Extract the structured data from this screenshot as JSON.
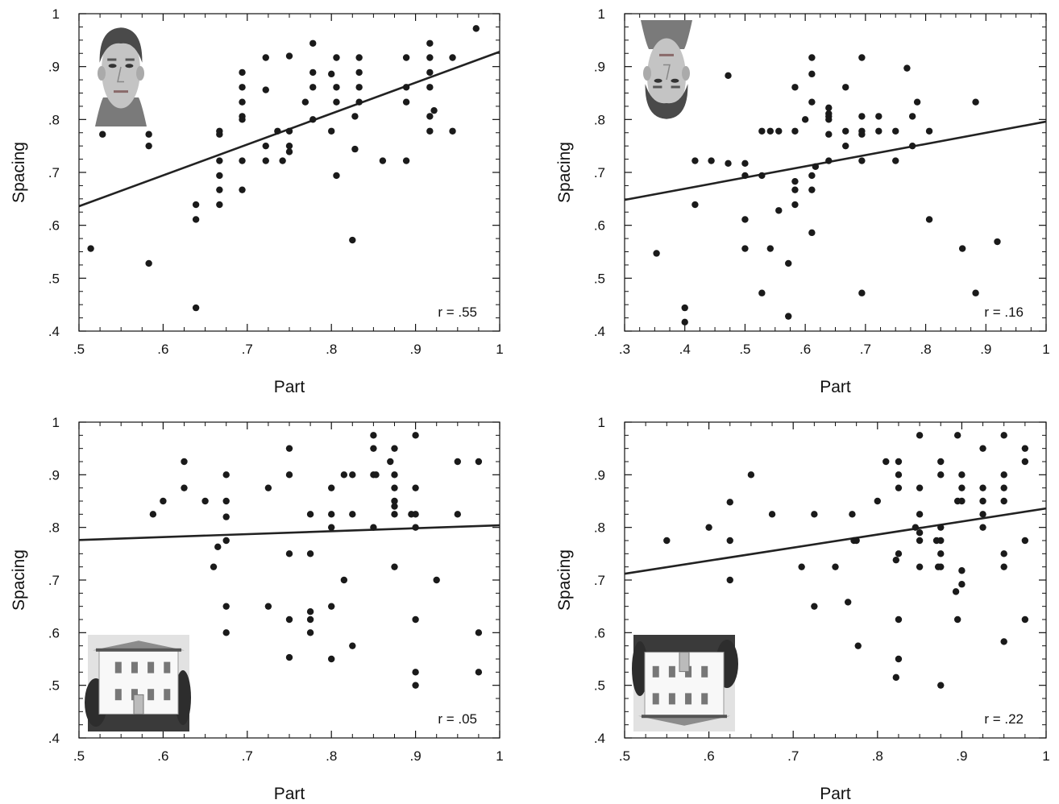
{
  "chart_data": [
    {
      "type": "scatter",
      "panel": "upright-face",
      "xlabel": "Part",
      "ylabel": "Spacing",
      "xlim": [
        0.5,
        1
      ],
      "ylim": [
        0.4,
        1
      ],
      "x_ticks": [
        ".5",
        ".6",
        ".7",
        ".8",
        ".9",
        "1"
      ],
      "y_ticks": [
        ".4",
        ".5",
        ".6",
        ".7",
        ".8",
        ".9",
        "1"
      ],
      "annotation": "r = .55",
      "image": "upright-face",
      "image_position": "top-left",
      "fit_line": {
        "x": [
          0.5,
          1.0
        ],
        "y": [
          0.636,
          0.928
        ]
      },
      "points": [
        [
          0.514,
          0.556
        ],
        [
          0.528,
          0.772
        ],
        [
          0.583,
          0.772
        ],
        [
          0.583,
          0.75
        ],
        [
          0.583,
          0.528
        ],
        [
          0.639,
          0.639
        ],
        [
          0.639,
          0.611
        ],
        [
          0.639,
          0.444
        ],
        [
          0.667,
          0.778
        ],
        [
          0.667,
          0.772
        ],
        [
          0.667,
          0.722
        ],
        [
          0.667,
          0.694
        ],
        [
          0.667,
          0.667
        ],
        [
          0.667,
          0.639
        ],
        [
          0.694,
          0.889
        ],
        [
          0.694,
          0.861
        ],
        [
          0.694,
          0.833
        ],
        [
          0.694,
          0.806
        ],
        [
          0.694,
          0.8
        ],
        [
          0.694,
          0.722
        ],
        [
          0.694,
          0.667
        ],
        [
          0.722,
          0.917
        ],
        [
          0.722,
          0.856
        ],
        [
          0.722,
          0.75
        ],
        [
          0.722,
          0.722
        ],
        [
          0.736,
          0.778
        ],
        [
          0.742,
          0.722
        ],
        [
          0.75,
          0.92
        ],
        [
          0.75,
          0.778
        ],
        [
          0.75,
          0.75
        ],
        [
          0.75,
          0.739
        ],
        [
          0.769,
          0.833
        ],
        [
          0.778,
          0.944
        ],
        [
          0.778,
          0.889
        ],
        [
          0.778,
          0.861
        ],
        [
          0.778,
          0.8
        ],
        [
          0.8,
          0.886
        ],
        [
          0.8,
          0.778
        ],
        [
          0.806,
          0.917
        ],
        [
          0.806,
          0.861
        ],
        [
          0.806,
          0.833
        ],
        [
          0.806,
          0.694
        ],
        [
          0.825,
          0.572
        ],
        [
          0.828,
          0.806
        ],
        [
          0.828,
          0.744
        ],
        [
          0.833,
          0.917
        ],
        [
          0.833,
          0.889
        ],
        [
          0.833,
          0.861
        ],
        [
          0.833,
          0.833
        ],
        [
          0.861,
          0.722
        ],
        [
          0.889,
          0.917
        ],
        [
          0.889,
          0.861
        ],
        [
          0.889,
          0.833
        ],
        [
          0.889,
          0.722
        ],
        [
          0.917,
          0.944
        ],
        [
          0.917,
          0.917
        ],
        [
          0.917,
          0.889
        ],
        [
          0.917,
          0.861
        ],
        [
          0.917,
          0.806
        ],
        [
          0.917,
          0.778
        ],
        [
          0.922,
          0.817
        ],
        [
          0.944,
          0.917
        ],
        [
          0.944,
          0.778
        ],
        [
          0.972,
          0.972
        ]
      ]
    },
    {
      "type": "scatter",
      "panel": "inverted-face",
      "xlabel": "Part",
      "ylabel": "Spacing",
      "xlim": [
        0.3,
        1
      ],
      "ylim": [
        0.4,
        1
      ],
      "x_ticks": [
        ".3",
        ".4",
        ".5",
        ".6",
        ".7",
        ".8",
        ".9",
        "1"
      ],
      "y_ticks": [
        ".4",
        ".5",
        ".6",
        ".7",
        ".8",
        ".9",
        "1"
      ],
      "annotation": "r = .16",
      "image": "inverted-face",
      "image_position": "top-left",
      "fit_line": {
        "x": [
          0.3,
          1.0
        ],
        "y": [
          0.648,
          0.796
        ]
      },
      "points": [
        [
          0.353,
          0.547
        ],
        [
          0.4,
          0.444
        ],
        [
          0.4,
          0.417
        ],
        [
          0.417,
          0.722
        ],
        [
          0.417,
          0.639
        ],
        [
          0.444,
          0.722
        ],
        [
          0.472,
          0.883
        ],
        [
          0.472,
          0.717
        ],
        [
          0.5,
          0.717
        ],
        [
          0.5,
          0.694
        ],
        [
          0.5,
          0.611
        ],
        [
          0.5,
          0.556
        ],
        [
          0.528,
          0.778
        ],
        [
          0.528,
          0.694
        ],
        [
          0.528,
          0.472
        ],
        [
          0.542,
          0.778
        ],
        [
          0.542,
          0.556
        ],
        [
          0.556,
          0.778
        ],
        [
          0.556,
          0.628
        ],
        [
          0.572,
          0.528
        ],
        [
          0.572,
          0.428
        ],
        [
          0.583,
          0.861
        ],
        [
          0.583,
          0.778
        ],
        [
          0.583,
          0.683
        ],
        [
          0.583,
          0.667
        ],
        [
          0.583,
          0.639
        ],
        [
          0.6,
          0.8
        ],
        [
          0.611,
          0.917
        ],
        [
          0.611,
          0.886
        ],
        [
          0.611,
          0.833
        ],
        [
          0.611,
          0.694
        ],
        [
          0.611,
          0.667
        ],
        [
          0.611,
          0.586
        ],
        [
          0.617,
          0.711
        ],
        [
          0.639,
          0.822
        ],
        [
          0.639,
          0.811
        ],
        [
          0.639,
          0.806
        ],
        [
          0.639,
          0.8
        ],
        [
          0.639,
          0.772
        ],
        [
          0.639,
          0.722
        ],
        [
          0.667,
          0.861
        ],
        [
          0.667,
          0.778
        ],
        [
          0.667,
          0.75
        ],
        [
          0.694,
          0.917
        ],
        [
          0.694,
          0.806
        ],
        [
          0.694,
          0.778
        ],
        [
          0.694,
          0.772
        ],
        [
          0.694,
          0.722
        ],
        [
          0.694,
          0.472
        ],
        [
          0.722,
          0.806
        ],
        [
          0.722,
          0.778
        ],
        [
          0.75,
          0.778
        ],
        [
          0.75,
          0.722
        ],
        [
          0.769,
          0.897
        ],
        [
          0.778,
          0.806
        ],
        [
          0.778,
          0.75
        ],
        [
          0.786,
          0.833
        ],
        [
          0.806,
          0.778
        ],
        [
          0.806,
          0.611
        ],
        [
          0.861,
          0.556
        ],
        [
          0.883,
          0.833
        ],
        [
          0.883,
          0.472
        ],
        [
          0.919,
          0.569
        ]
      ]
    },
    {
      "type": "scatter",
      "panel": "upright-house",
      "xlabel": "Part",
      "ylabel": "Spacing",
      "xlim": [
        0.5,
        1
      ],
      "ylim": [
        0.4,
        1
      ],
      "x_ticks": [
        ".5",
        ".6",
        ".7",
        ".8",
        ".9",
        "1"
      ],
      "y_ticks": [
        ".4",
        ".5",
        ".6",
        ".7",
        ".8",
        ".9",
        "1"
      ],
      "annotation": "r = .05",
      "image": "upright-house",
      "image_position": "bottom-left",
      "fit_line": {
        "x": [
          0.5,
          1.0
        ],
        "y": [
          0.776,
          0.804
        ]
      },
      "points": [
        [
          0.588,
          0.825
        ],
        [
          0.6,
          0.85
        ],
        [
          0.625,
          0.925
        ],
        [
          0.625,
          0.875
        ],
        [
          0.65,
          0.85
        ],
        [
          0.66,
          0.725
        ],
        [
          0.665,
          0.763
        ],
        [
          0.675,
          0.9
        ],
        [
          0.675,
          0.85
        ],
        [
          0.675,
          0.82
        ],
        [
          0.675,
          0.775
        ],
        [
          0.675,
          0.65
        ],
        [
          0.675,
          0.6
        ],
        [
          0.725,
          0.875
        ],
        [
          0.725,
          0.65
        ],
        [
          0.75,
          0.95
        ],
        [
          0.75,
          0.9
        ],
        [
          0.75,
          0.75
        ],
        [
          0.75,
          0.625
        ],
        [
          0.75,
          0.553
        ],
        [
          0.775,
          0.825
        ],
        [
          0.775,
          0.75
        ],
        [
          0.775,
          0.64
        ],
        [
          0.775,
          0.625
        ],
        [
          0.775,
          0.6
        ],
        [
          0.8,
          0.875
        ],
        [
          0.8,
          0.825
        ],
        [
          0.8,
          0.8
        ],
        [
          0.8,
          0.65
        ],
        [
          0.8,
          0.55
        ],
        [
          0.815,
          0.9
        ],
        [
          0.815,
          0.7
        ],
        [
          0.825,
          0.9
        ],
        [
          0.825,
          0.825
        ],
        [
          0.825,
          0.575
        ],
        [
          0.85,
          0.975
        ],
        [
          0.85,
          0.95
        ],
        [
          0.85,
          0.9
        ],
        [
          0.85,
          0.8
        ],
        [
          0.853,
          0.9
        ],
        [
          0.87,
          0.925
        ],
        [
          0.875,
          0.95
        ],
        [
          0.875,
          0.9
        ],
        [
          0.875,
          0.875
        ],
        [
          0.875,
          0.85
        ],
        [
          0.875,
          0.84
        ],
        [
          0.875,
          0.825
        ],
        [
          0.875,
          0.725
        ],
        [
          0.895,
          0.825
        ],
        [
          0.9,
          0.975
        ],
        [
          0.9,
          0.875
        ],
        [
          0.9,
          0.825
        ],
        [
          0.9,
          0.8
        ],
        [
          0.9,
          0.625
        ],
        [
          0.9,
          0.525
        ],
        [
          0.9,
          0.5
        ],
        [
          0.925,
          0.7
        ],
        [
          0.95,
          0.925
        ],
        [
          0.95,
          0.825
        ],
        [
          0.975,
          0.925
        ],
        [
          0.975,
          0.6
        ],
        [
          0.975,
          0.525
        ]
      ]
    },
    {
      "type": "scatter",
      "panel": "inverted-house",
      "xlabel": "Part",
      "ylabel": "Spacing",
      "xlim": [
        0.5,
        1
      ],
      "ylim": [
        0.4,
        1
      ],
      "x_ticks": [
        ".5",
        ".6",
        ".7",
        ".8",
        ".9",
        "1"
      ],
      "y_ticks": [
        ".4",
        ".5",
        ".6",
        ".7",
        ".8",
        ".9",
        "1"
      ],
      "annotation": "r = .22",
      "image": "inverted-house",
      "image_position": "bottom-left",
      "fit_line": {
        "x": [
          0.5,
          1.0
        ],
        "y": [
          0.712,
          0.836
        ]
      },
      "points": [
        [
          0.55,
          0.775
        ],
        [
          0.6,
          0.8
        ],
        [
          0.625,
          0.848
        ],
        [
          0.625,
          0.775
        ],
        [
          0.625,
          0.7
        ],
        [
          0.65,
          0.9
        ],
        [
          0.675,
          0.825
        ],
        [
          0.71,
          0.725
        ],
        [
          0.725,
          0.825
        ],
        [
          0.725,
          0.65
        ],
        [
          0.75,
          0.725
        ],
        [
          0.765,
          0.658
        ],
        [
          0.77,
          0.825
        ],
        [
          0.772,
          0.775
        ],
        [
          0.775,
          0.775
        ],
        [
          0.777,
          0.575
        ],
        [
          0.8,
          0.85
        ],
        [
          0.81,
          0.925
        ],
        [
          0.822,
          0.738
        ],
        [
          0.822,
          0.515
        ],
        [
          0.825,
          0.925
        ],
        [
          0.825,
          0.9
        ],
        [
          0.825,
          0.875
        ],
        [
          0.825,
          0.75
        ],
        [
          0.825,
          0.625
        ],
        [
          0.825,
          0.55
        ],
        [
          0.845,
          0.8
        ],
        [
          0.85,
          0.975
        ],
        [
          0.85,
          0.875
        ],
        [
          0.85,
          0.825
        ],
        [
          0.85,
          0.79
        ],
        [
          0.85,
          0.775
        ],
        [
          0.85,
          0.725
        ],
        [
          0.87,
          0.775
        ],
        [
          0.872,
          0.725
        ],
        [
          0.875,
          0.925
        ],
        [
          0.875,
          0.9
        ],
        [
          0.875,
          0.8
        ],
        [
          0.875,
          0.775
        ],
        [
          0.875,
          0.75
        ],
        [
          0.875,
          0.725
        ],
        [
          0.875,
          0.5
        ],
        [
          0.895,
          0.975
        ],
        [
          0.895,
          0.85
        ],
        [
          0.895,
          0.625
        ],
        [
          0.893,
          0.678
        ],
        [
          0.9,
          0.9
        ],
        [
          0.9,
          0.875
        ],
        [
          0.9,
          0.85
        ],
        [
          0.9,
          0.718
        ],
        [
          0.9,
          0.692
        ],
        [
          0.925,
          0.95
        ],
        [
          0.925,
          0.875
        ],
        [
          0.925,
          0.85
        ],
        [
          0.925,
          0.825
        ],
        [
          0.925,
          0.8
        ],
        [
          0.95,
          0.975
        ],
        [
          0.95,
          0.9
        ],
        [
          0.95,
          0.875
        ],
        [
          0.95,
          0.85
        ],
        [
          0.95,
          0.75
        ],
        [
          0.95,
          0.725
        ],
        [
          0.95,
          0.583
        ],
        [
          0.975,
          0.95
        ],
        [
          0.975,
          0.925
        ],
        [
          0.975,
          0.775
        ],
        [
          0.975,
          0.625
        ]
      ]
    }
  ]
}
